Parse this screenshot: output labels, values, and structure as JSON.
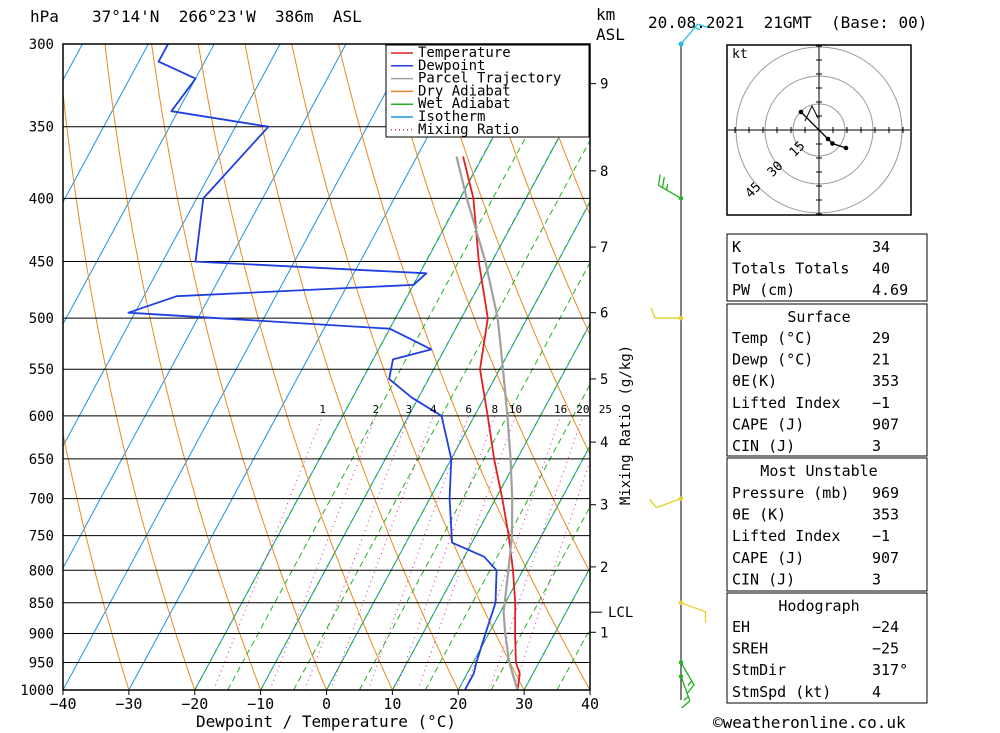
{
  "header": {
    "location": "37°14'N  266°23'W  386m  ASL",
    "run": "20.08.2021  21GMT  (Base: 00)",
    "hpa_unit": "hPa",
    "km_unit": "km",
    "asl_unit": "ASL"
  },
  "footer": {
    "credit": "©weatheronline.co.uk"
  },
  "chart_data": {
    "type": "line",
    "subtype": "skew-T log-P diagram",
    "xlabel": "Dewpoint / Temperature (°C)",
    "ylabel": "hPa",
    "mixing_ratio_axis_label": "Mixing Ratio (g/kg)",
    "xlim": [
      -40,
      40
    ],
    "ylim": [
      1000,
      300
    ],
    "x_ticks": [
      "−40",
      "−30",
      "−20",
      "−10",
      "0",
      "10",
      "20",
      "30",
      "40"
    ],
    "x_tick_values": [
      -40,
      -30,
      -20,
      -10,
      0,
      10,
      20,
      30,
      40
    ],
    "pressure_levels": [
      300,
      350,
      400,
      450,
      500,
      550,
      600,
      650,
      700,
      750,
      800,
      850,
      900,
      950,
      1000
    ],
    "km_ticks": [
      {
        "label": "9",
        "p": 323
      },
      {
        "label": "8",
        "p": 380
      },
      {
        "label": "7",
        "p": 438
      },
      {
        "label": "6",
        "p": 495
      },
      {
        "label": "5",
        "p": 560
      },
      {
        "label": "4",
        "p": 630
      },
      {
        "label": "3",
        "p": 708
      },
      {
        "label": "2",
        "p": 795
      },
      {
        "label": "1",
        "p": 898
      }
    ],
    "lcl": {
      "label": "LCL",
      "p": 865
    },
    "mixing_ratio_labels": [
      {
        "label": "1",
        "v": 1
      },
      {
        "label": "2",
        "v": 2
      },
      {
        "label": "3",
        "v": 3
      },
      {
        "label": "4",
        "v": 4
      },
      {
        "label": "6",
        "v": 6
      },
      {
        "label": "8",
        "v": 8
      },
      {
        "label": "10",
        "v": 10
      },
      {
        "label": "16",
        "v": 16
      },
      {
        "label": "20",
        "v": 20
      },
      {
        "label": "25",
        "v": 25
      }
    ],
    "legend": [
      {
        "label": "Temperature",
        "color": "#e02020",
        "dotted": false
      },
      {
        "label": "Dewpoint",
        "color": "#1f3fe0",
        "dotted": false
      },
      {
        "label": "Parcel Trajectory",
        "color": "#a0a0a0",
        "dotted": false
      },
      {
        "label": "Dry Adiabat",
        "color": "#e88a20",
        "dotted": false
      },
      {
        "label": "Wet Adiabat",
        "color": "#20b020",
        "dotted": false
      },
      {
        "label": "Isotherm",
        "color": "#2090e0",
        "dotted": false
      },
      {
        "label": "Mixing Ratio",
        "color": "#e020a0",
        "dotted": true
      }
    ],
    "series": [
      {
        "name": "Temperature",
        "color": "#e02020",
        "points": [
          [
            1000,
            29
          ],
          [
            970,
            28
          ],
          [
            950,
            26.5
          ],
          [
            900,
            24
          ],
          [
            850,
            21.5
          ],
          [
            800,
            18.5
          ],
          [
            750,
            15
          ],
          [
            700,
            11
          ],
          [
            650,
            6.5
          ],
          [
            600,
            2
          ],
          [
            550,
            -3
          ],
          [
            500,
            -6
          ],
          [
            450,
            -12
          ],
          [
            400,
            -18
          ],
          [
            370,
            -23
          ]
        ]
      },
      {
        "name": "Dewpoint",
        "color": "#1f3fe0",
        "points": [
          [
            1000,
            21
          ],
          [
            970,
            21
          ],
          [
            950,
            20.5
          ],
          [
            900,
            19.5
          ],
          [
            850,
            18.5
          ],
          [
            800,
            16
          ],
          [
            780,
            13
          ],
          [
            760,
            7
          ],
          [
            700,
            3
          ],
          [
            650,
            0
          ],
          [
            600,
            -5
          ],
          [
            580,
            -11
          ],
          [
            560,
            -16
          ],
          [
            540,
            -17
          ],
          [
            530,
            -12
          ],
          [
            520,
            -16
          ],
          [
            510,
            -20
          ],
          [
            495,
            -61
          ],
          [
            480,
            -55
          ],
          [
            470,
            -20
          ],
          [
            460,
            -19
          ],
          [
            450,
            -55
          ],
          [
            400,
            -59
          ],
          [
            350,
            -55
          ],
          [
            340,
            -71
          ],
          [
            320,
            -70
          ],
          [
            310,
            -77
          ],
          [
            300,
            -77
          ]
        ]
      },
      {
        "name": "Parcel Trajectory",
        "color": "#a0a0a0",
        "points": [
          [
            1000,
            29
          ],
          [
            950,
            25.5
          ],
          [
            900,
            22.5
          ],
          [
            865,
            20.5
          ],
          [
            800,
            17.8
          ],
          [
            750,
            15.5
          ],
          [
            700,
            12.5
          ],
          [
            650,
            9
          ],
          [
            600,
            5
          ],
          [
            550,
            0.5
          ],
          [
            500,
            -4.5
          ],
          [
            450,
            -11
          ],
          [
            400,
            -19
          ],
          [
            370,
            -24
          ]
        ]
      }
    ],
    "hodograph": {
      "unit_label": "kt",
      "rings": [
        "15",
        "30",
        "45"
      ],
      "points": [
        [
          -2,
          2
        ],
        [
          1,
          -1
        ],
        [
          1.5,
          -1.5
        ],
        [
          3,
          -2
        ]
      ]
    },
    "wind_barbs": [
      {
        "p": 300,
        "spd": 5,
        "dir": 40
      },
      {
        "p": 400,
        "spd": 15,
        "dir": 300
      },
      {
        "p": 500,
        "spd": 10,
        "dir": 270
      },
      {
        "p": 700,
        "spd": 10,
        "dir": 250
      },
      {
        "p": 850,
        "spd": 10,
        "dir": 110
      },
      {
        "p": 950,
        "spd": 5,
        "dir": 150
      },
      {
        "p": 975,
        "spd": 5,
        "dir": 160
      }
    ]
  },
  "indices": {
    "basic": [
      {
        "label": "K",
        "value": "34"
      },
      {
        "label": "Totals Totals",
        "value": "40"
      },
      {
        "label": "PW (cm)",
        "value": "4.69"
      }
    ],
    "surface": {
      "title": "Surface",
      "rows": [
        {
          "label": "Temp (°C)",
          "value": "29"
        },
        {
          "label": "Dewp (°C)",
          "value": "21"
        },
        {
          "label": "θE(K)",
          "value": "353"
        },
        {
          "label": "Lifted Index",
          "value": "−1"
        },
        {
          "label": "CAPE (J)",
          "value": "907"
        },
        {
          "label": "CIN (J)",
          "value": "3"
        }
      ]
    },
    "most_unstable": {
      "title": "Most Unstable",
      "rows": [
        {
          "label": "Pressure (mb)",
          "value": "969"
        },
        {
          "label": "θE (K)",
          "value": "353"
        },
        {
          "label": "Lifted Index",
          "value": "−1"
        },
        {
          "label": "CAPE (J)",
          "value": "907"
        },
        {
          "label": "CIN (J)",
          "value": "3"
        }
      ]
    },
    "hodograph": {
      "title": "Hodograph",
      "rows": [
        {
          "label": "EH",
          "value": "−24"
        },
        {
          "label": "SREH",
          "value": "−25"
        },
        {
          "label": "StmDir",
          "value": "317°"
        },
        {
          "label": "StmSpd (kt)",
          "value": "4"
        }
      ]
    }
  }
}
